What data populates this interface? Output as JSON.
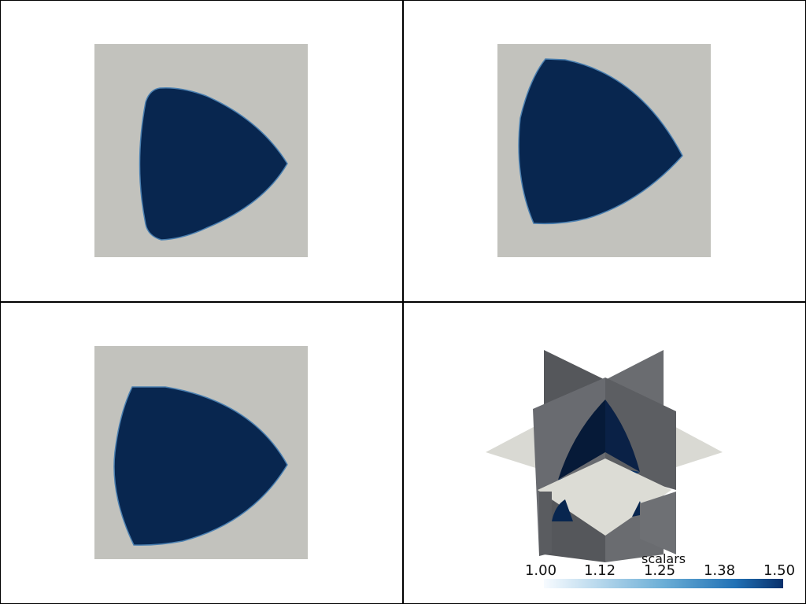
{
  "colors": {
    "plane_gray": "#c2c2bd",
    "solid_blue": "#08264f",
    "edge_blue": "#4a7fb0",
    "cbar_low": "#f7fbff",
    "cbar_mid": "#3a7fbd",
    "cbar_high": "#08306b"
  },
  "scalar_bar": {
    "title": "scalars",
    "ticks": [
      "1.00",
      "1.12",
      "1.25",
      "1.38",
      "1.50"
    ],
    "range": [
      1.0,
      1.5
    ]
  },
  "views": [
    {
      "name": "slice-view-top-left",
      "icon": "reuleaux-slice"
    },
    {
      "name": "slice-view-top-right",
      "icon": "reuleaux-slice"
    },
    {
      "name": "slice-view-bottom-left",
      "icon": "reuleaux-slice"
    },
    {
      "name": "orthogonal-slices-3d-view",
      "icon": "orthogonal-planes"
    }
  ]
}
